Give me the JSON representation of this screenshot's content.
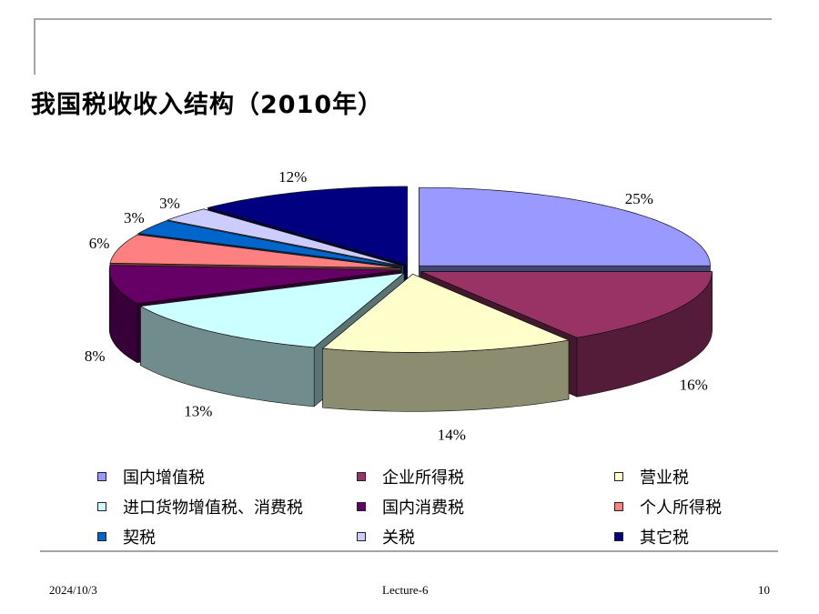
{
  "slide": {
    "title": "我国税收收入结构（2010年）",
    "footer": {
      "date": "2024/10/3",
      "lecture": "Lecture-6",
      "page": "10"
    }
  },
  "chart_data": {
    "type": "pie",
    "title": "我国税收收入结构（2010年）",
    "style": "3d-exploded",
    "legend_position": "bottom",
    "slices": [
      {
        "name": "国内增值税",
        "value": 25,
        "label": "25%",
        "color": "#9999ff"
      },
      {
        "name": "企业所得税",
        "value": 16,
        "label": "16%",
        "color": "#993366"
      },
      {
        "name": "营业税",
        "value": 14,
        "label": "14%",
        "color": "#ffffcc"
      },
      {
        "name": "进口货物增值税、消费税",
        "value": 13,
        "label": "13%",
        "color": "#ccffff"
      },
      {
        "name": "国内消费税",
        "value": 8,
        "label": "8%",
        "color": "#660066"
      },
      {
        "name": "个人所得税",
        "value": 6,
        "label": "6%",
        "color": "#ff8080"
      },
      {
        "name": "契税",
        "value": 3,
        "label": "3%",
        "color": "#0066cc"
      },
      {
        "name": "关税",
        "value": 3,
        "label": "3%",
        "color": "#ccccff"
      },
      {
        "name": "其它税",
        "value": 12,
        "label": "12%",
        "color": "#000080"
      }
    ]
  }
}
